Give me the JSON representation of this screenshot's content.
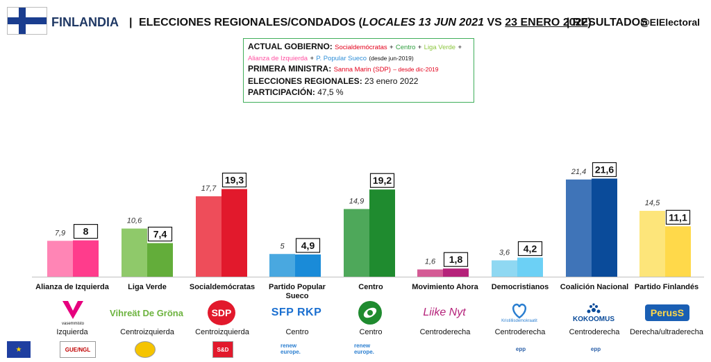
{
  "header": {
    "country": "FINLANDIA",
    "separator": "|",
    "subtitle_prefix": "ELECCIONES REGIONALES/CONDADOS (",
    "subtitle_italic": "LOCALES 13 JUN 2021",
    "subtitle_vs": " VS ",
    "subtitle_underlined": "23 ENERO 2022",
    "subtitle_suffix": ")",
    "results": "| RESULTADOS",
    "handle": "@ElElectoral"
  },
  "info": {
    "gov_label": "ACTUAL GOBIERNO:",
    "gov_p1": "Socialdemócratas",
    "plus": "+",
    "gov_p2": "Centro",
    "gov_p3": "Liga Verde",
    "gov_p4": "Alianza de Izquierda",
    "gov_p5": "P. Popular Sueco",
    "gov_since": "(desde jun-2019)",
    "pm_label": "PRIMERA MINISTRA:",
    "pm_name": "Sanna Marin (SDP)",
    "pm_since": "– desde dic-2019",
    "elections_label": "ELECCIONES REGIONALES:",
    "elections_value": "23 enero 2022",
    "turnout_label": "PARTICIPACIÓN:",
    "turnout_value": "47,5 %"
  },
  "chart_data": {
    "type": "bar",
    "title": "",
    "xlabel": "",
    "ylabel": "",
    "ylim": [
      0,
      23
    ],
    "categories": [
      "Alianza de Izquierda",
      "Liga Verde",
      "Socialdemócratas",
      "Partido Popular Sueco",
      "Centro",
      "Movimiento Ahora",
      "Democristianos",
      "Coalición Nacional",
      "Partido Finlandés"
    ],
    "series": [
      {
        "values": [
          7.9,
          10.6,
          17.7,
          5,
          14.9,
          1.6,
          3.6,
          21.4,
          14.5
        ],
        "labels": [
          "7,9",
          "10,6",
          "17,7",
          "5",
          "14,9",
          "1,6",
          "3,6",
          "21,4",
          "14,5"
        ],
        "colors": [
          "#ff85b5",
          "#8fc96a",
          "#ee4d5a",
          "#49a8e0",
          "#4ea85a",
          "#d45b95",
          "#8fd8f2",
          "#3f74b8",
          "#fde57a"
        ]
      },
      {
        "values": [
          8,
          7.4,
          19.3,
          4.9,
          19.2,
          1.8,
          4.2,
          21.6,
          11.1
        ],
        "labels": [
          "8",
          "7,4",
          "19,3",
          "4,9",
          "19,2",
          "1,8",
          "4,2",
          "21,6",
          "11,1"
        ],
        "colors": [
          "#ff3c8c",
          "#63ad3a",
          "#e2192c",
          "#1a8bd8",
          "#1f8b2f",
          "#b5227a",
          "#6cd0f5",
          "#0a4b9a",
          "#ffd94a"
        ]
      }
    ]
  },
  "parties": [
    {
      "name": "Alianza de Izquierda",
      "logo_text": "vasemmisto",
      "ideology": "Izquierda"
    },
    {
      "name": "Liga Verde",
      "logo_text": "Vihreät De Gröna",
      "ideology": "Centroizquierda"
    },
    {
      "name": "Socialdemócratas",
      "logo_text": "SDP",
      "ideology": "Centroizquierda"
    },
    {
      "name_line1": "Partido Popular",
      "name_line2": "Sueco",
      "logo_text": "SFP RKP",
      "ideology": "Centro"
    },
    {
      "name": "Centro",
      "logo_text": "",
      "ideology": "Centro"
    },
    {
      "name": "Movimiento Ahora",
      "logo_text": "Liike Nyt",
      "ideology": "Centroderecha"
    },
    {
      "name": "Democristianos",
      "logo_text": "Kristillisdemokraatit",
      "ideology": "Centroderecha"
    },
    {
      "name": "Coalición Nacional",
      "logo_text": "KOKOOMUS",
      "ideology": "Centroderecha"
    },
    {
      "name": "Partido Finlandés",
      "logo_text": "PerusS",
      "ideology": "Derecha/ultraderecha"
    }
  ],
  "footer": {
    "groups": [
      "GUE/NGL",
      "",
      "S&D",
      "renew europe.",
      "renew europe.",
      "",
      "epp",
      "epp",
      ""
    ]
  },
  "colors": {
    "title_blue": "#1f3864",
    "box_border": "#3fae5a",
    "flag_blue": "#1a3d8f"
  }
}
